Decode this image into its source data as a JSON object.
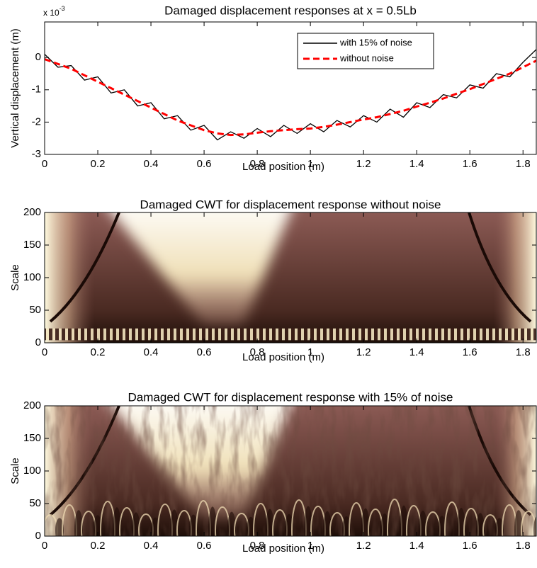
{
  "chart_data": [
    {
      "type": "line",
      "title": "Damaged displacement responses at x = 0.5Lb",
      "xlabel": "Load position (m)",
      "ylabel": "Vertical displacement (m)",
      "y_multiplier": "x 10",
      "y_multiplier_exponent": "-3",
      "x": [
        0,
        0.05,
        0.1,
        0.15,
        0.2,
        0.25,
        0.3,
        0.35,
        0.4,
        0.45,
        0.5,
        0.55,
        0.6,
        0.65,
        0.7,
        0.75,
        0.8,
        0.85,
        0.9,
        0.95,
        1.0,
        1.05,
        1.1,
        1.15,
        1.2,
        1.25,
        1.3,
        1.35,
        1.4,
        1.45,
        1.5,
        1.55,
        1.6,
        1.65,
        1.7,
        1.75,
        1.8,
        1.85
      ],
      "series": [
        {
          "name": "with 15% of noise",
          "color": "#000000",
          "line_style": "solid",
          "values": [
            0.1,
            -0.3,
            -0.25,
            -0.7,
            -0.6,
            -1.1,
            -1.0,
            -1.5,
            -1.4,
            -1.9,
            -1.8,
            -2.25,
            -2.1,
            -2.55,
            -2.3,
            -2.5,
            -2.2,
            -2.45,
            -2.1,
            -2.35,
            -2.05,
            -2.3,
            -1.95,
            -2.15,
            -1.8,
            -2.0,
            -1.6,
            -1.85,
            -1.4,
            -1.55,
            -1.15,
            -1.25,
            -0.85,
            -0.95,
            -0.5,
            -0.6,
            -0.15,
            0.25
          ]
        },
        {
          "name": "without noise",
          "color": "#ff0000",
          "line_style": "dashed",
          "values": [
            -0.05,
            -0.2,
            -0.35,
            -0.55,
            -0.75,
            -0.95,
            -1.15,
            -1.35,
            -1.55,
            -1.75,
            -1.95,
            -2.1,
            -2.25,
            -2.35,
            -2.4,
            -2.38,
            -2.33,
            -2.28,
            -2.25,
            -2.22,
            -2.2,
            -2.15,
            -2.08,
            -2.0,
            -1.92,
            -1.85,
            -1.75,
            -1.65,
            -1.52,
            -1.4,
            -1.27,
            -1.12,
            -0.98,
            -0.82,
            -0.66,
            -0.5,
            -0.3,
            -0.1
          ]
        }
      ],
      "xlim": [
        0,
        1.85
      ],
      "ylim": [
        -3,
        1.1
      ],
      "xticks": [
        0,
        0.2,
        0.4,
        0.6,
        0.8,
        1,
        1.2,
        1.4,
        1.6,
        1.8
      ],
      "yticks": [
        0,
        -1,
        -2,
        -3
      ],
      "legend": "top-right"
    },
    {
      "type": "heatmap",
      "title": "Damaged CWT for displacement response without noise",
      "xlabel": "Load position (m)",
      "ylabel": "Scale",
      "noise": false,
      "xlim": [
        0,
        1.85
      ],
      "ylim": [
        0,
        200
      ],
      "xticks": [
        0,
        0.2,
        0.4,
        0.6,
        0.8,
        1,
        1.2,
        1.4,
        1.6,
        1.8
      ],
      "yticks": [
        0,
        50,
        100,
        150,
        200
      ]
    },
    {
      "type": "heatmap",
      "title": "Damaged CWT for displacement response with 15% of noise",
      "xlabel": "Load position (m)",
      "ylabel": "Scale",
      "noise": true,
      "xlim": [
        0,
        1.85
      ],
      "ylim": [
        0,
        200
      ],
      "xticks": [
        0,
        0.2,
        0.4,
        0.6,
        0.8,
        1,
        1.2,
        1.4,
        1.6,
        1.8
      ],
      "yticks": [
        0,
        50,
        100,
        150,
        200
      ]
    }
  ]
}
